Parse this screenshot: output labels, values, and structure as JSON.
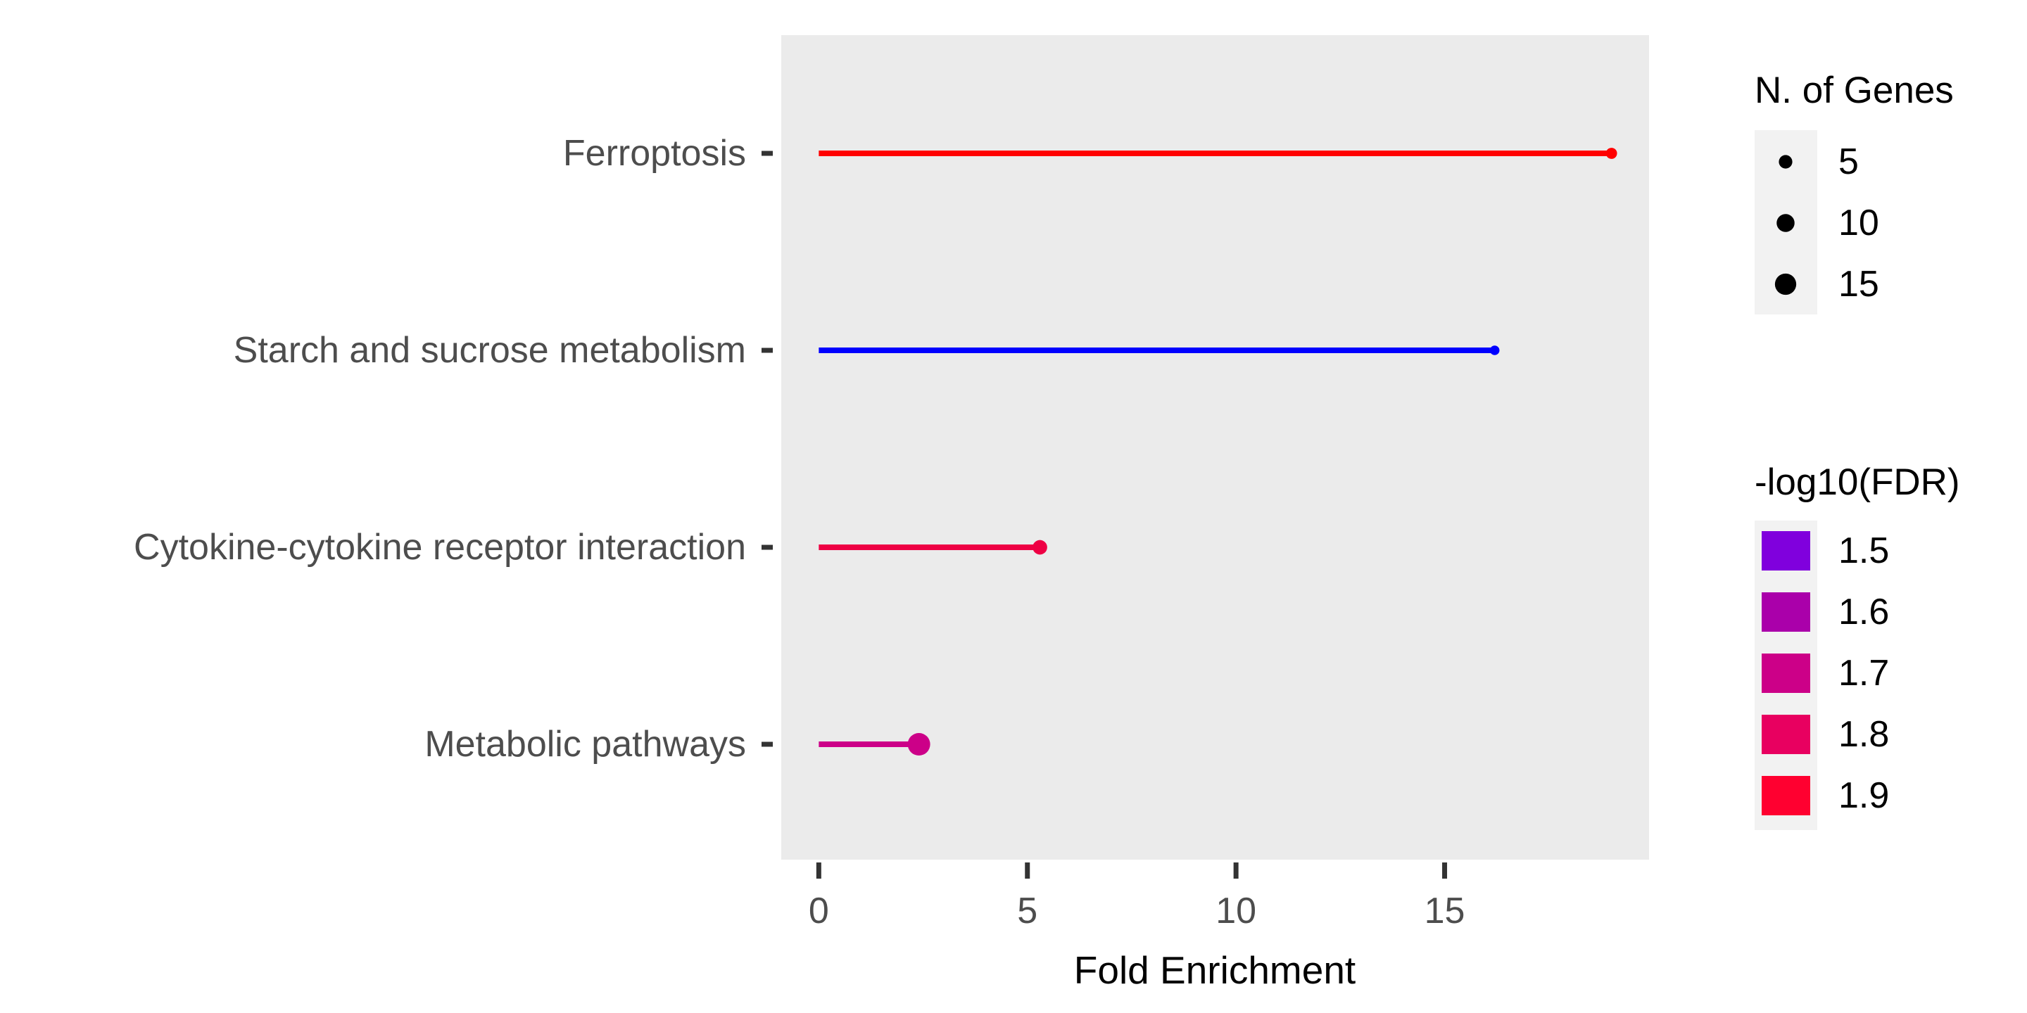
{
  "chart_data": {
    "type": "lollipop",
    "xlabel": "Fold Enrichment",
    "ylabel": "",
    "xlim": [
      -0.9,
      19.9
    ],
    "xticks": [
      0,
      5,
      10,
      15
    ],
    "grid": false,
    "panel_color": "#ebebeb",
    "categories": [
      "Ferroptosis",
      "Starch and sucrose metabolism",
      "Cytokine-cytokine receptor interaction",
      "Metabolic pathways"
    ],
    "points": [
      {
        "category": "Ferroptosis",
        "fold_enrichment": 19.0,
        "n_genes": 3,
        "neg_log10_fdr": 1.93,
        "color": "#ff0000"
      },
      {
        "category": "Starch and sucrose metabolism",
        "fold_enrichment": 16.2,
        "n_genes": 2,
        "neg_log10_fdr": 1.45,
        "color": "#0000ff"
      },
      {
        "category": "Cytokine-cytokine receptor interaction",
        "fold_enrichment": 5.3,
        "n_genes": 6,
        "neg_log10_fdr": 1.85,
        "color": "#ee0044"
      },
      {
        "category": "Metabolic pathways",
        "fold_enrichment": 2.4,
        "n_genes": 17,
        "neg_log10_fdr": 1.72,
        "color": "#cc0088"
      }
    ],
    "legend": {
      "position": "right",
      "size": {
        "title": "N. of Genes",
        "entries": [
          {
            "label": "5",
            "value": 5
          },
          {
            "label": "10",
            "value": 10
          },
          {
            "label": "15",
            "value": 15
          }
        ]
      },
      "color": {
        "title": "-log10(FDR)",
        "entries": [
          {
            "label": "1.5",
            "color": "#8000dd"
          },
          {
            "label": "1.6",
            "color": "#aa00aa"
          },
          {
            "label": "1.7",
            "color": "#cc0088"
          },
          {
            "label": "1.8",
            "color": "#e80060"
          },
          {
            "label": "1.9",
            "color": "#ff0030"
          }
        ]
      }
    }
  }
}
